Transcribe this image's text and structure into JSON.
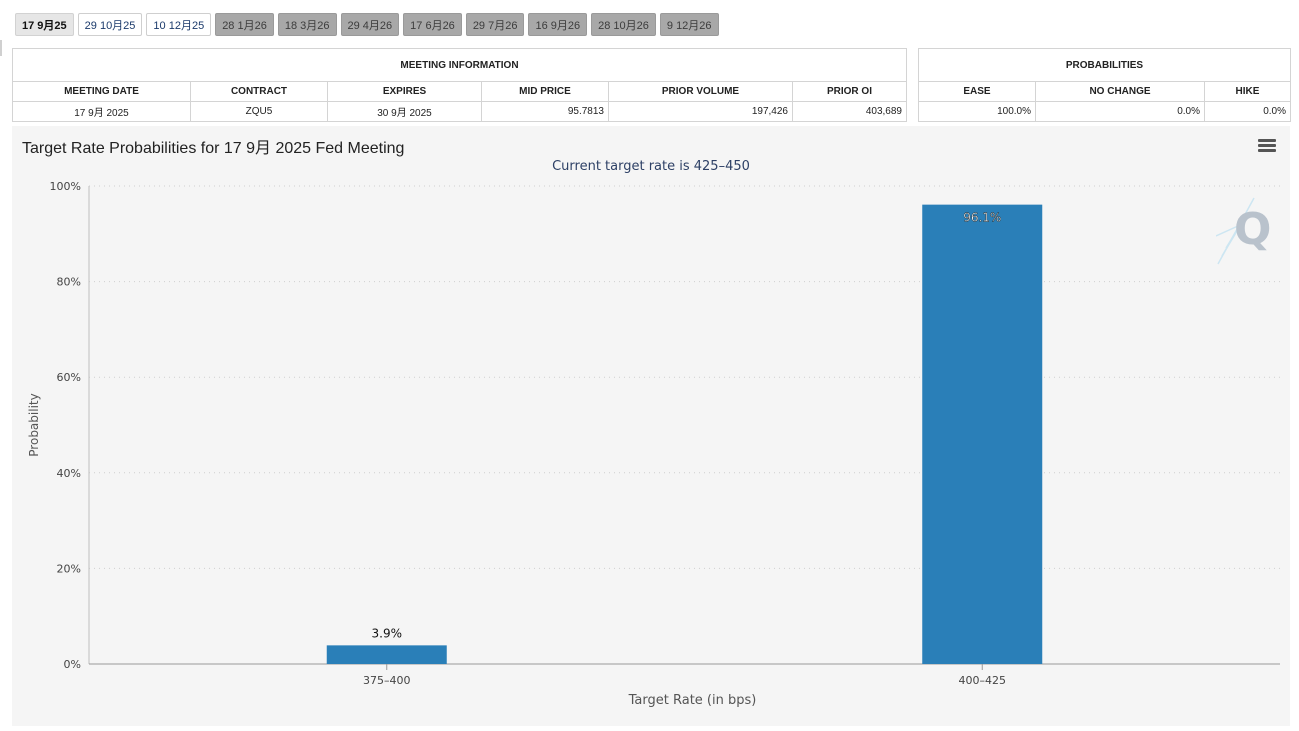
{
  "tabs": [
    {
      "label": "17 9月25",
      "state": "active"
    },
    {
      "label": "29 10月25",
      "state": "normal"
    },
    {
      "label": "10 12月25",
      "state": "normal"
    },
    {
      "label": "28 1月26",
      "state": "disabled"
    },
    {
      "label": "18 3月26",
      "state": "disabled"
    },
    {
      "label": "29 4月26",
      "state": "disabled"
    },
    {
      "label": "17 6月26",
      "state": "disabled"
    },
    {
      "label": "29 7月26",
      "state": "disabled"
    },
    {
      "label": "16 9月26",
      "state": "disabled"
    },
    {
      "label": "28 10月26",
      "state": "disabled"
    },
    {
      "label": "9 12月26",
      "state": "disabled"
    }
  ],
  "meeting_info": {
    "header": "MEETING INFORMATION",
    "columns": [
      "MEETING DATE",
      "CONTRACT",
      "EXPIRES",
      "MID PRICE",
      "PRIOR VOLUME",
      "PRIOR OI"
    ],
    "row": [
      "17 9月 2025",
      "ZQU5",
      "30 9月 2025",
      "95.7813",
      "197,426",
      "403,689"
    ]
  },
  "probabilities": {
    "header": "PROBABILITIES",
    "columns": [
      "EASE",
      "NO CHANGE",
      "HIKE"
    ],
    "row": [
      "100.0%",
      "0.0%",
      "0.0%"
    ]
  },
  "chart_data": {
    "type": "bar",
    "title": "Target Rate Probabilities for 17 9月 2025 Fed Meeting",
    "subtitle": "Current target rate is 425–450",
    "xlabel": "Target Rate (in bps)",
    "ylabel": "Probability",
    "categories": [
      "375–400",
      "400–425"
    ],
    "values": [
      3.9,
      96.1
    ],
    "data_labels": [
      "3.9%",
      "96.1%"
    ],
    "yticks": [
      "0%",
      "20%",
      "40%",
      "60%",
      "80%",
      "100%"
    ],
    "ylim": [
      0,
      100
    ],
    "grid": true,
    "bar_color": "#2a7fb8"
  },
  "colors": {
    "panel_bg": "#f5f5f5",
    "bar": "#2a7fb8",
    "subtitle": "#2e4166"
  },
  "icons": {
    "menu": "hamburger-menu-icon",
    "logo": "quikstrike-q-logo"
  }
}
